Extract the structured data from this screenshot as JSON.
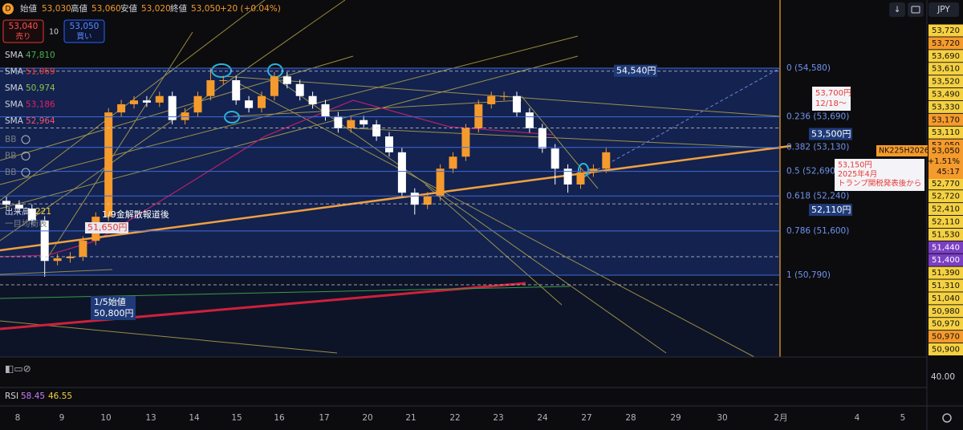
{
  "header": {
    "symbol_icon": "D",
    "open_label": "始値",
    "open": "53,030",
    "high_label": "高値",
    "high": "53,060",
    "low_label": "安値",
    "low": "53,020",
    "close_label": "終値",
    "close": "53,050",
    "change": "+20 (+0.04%)"
  },
  "trade": {
    "sell_price": "53,040",
    "sell": "売り",
    "qty": "10",
    "buy_price": "53,050",
    "buy": "買い"
  },
  "indicators": [
    {
      "name": "SMA",
      "value": "47,810",
      "color": "#4caf50"
    },
    {
      "name": "SMA",
      "value": "51,069",
      "color": "#f44336"
    },
    {
      "name": "SMA",
      "value": "50,974",
      "color": "#8bc34a"
    },
    {
      "name": "SMA",
      "value": "53,186",
      "color": "#e91e63"
    },
    {
      "name": "SMA",
      "value": "52,964",
      "color": "#ef5370"
    }
  ],
  "bb": [
    "BB",
    "BB",
    "BB"
  ],
  "volume": {
    "name": "出来高",
    "value": "221"
  },
  "ichimoku": "一目均衡表",
  "currency": "JPY",
  "chart_data": {
    "type": "candlestick",
    "categories": [
      "8",
      "9",
      "10",
      "13",
      "14",
      "15",
      "16",
      "17",
      "20",
      "21",
      "22",
      "23",
      "24",
      "27",
      "28",
      "29",
      "30",
      "2月",
      "4",
      "5"
    ],
    "open": [
      52150,
      52080,
      52010,
      51790,
      51050,
      51100,
      51130,
      51420,
      51860,
      53770,
      53920,
      53990,
      53950,
      54070,
      53630,
      53770,
      54070,
      54360,
      54360,
      53990,
      53850,
      54070,
      54430,
      54290,
      54070,
      53920,
      53700,
      53480,
      53630,
      53550,
      53330,
      53040,
      52300,
      52080,
      52230,
      52740,
      52960,
      53480,
      53920,
      54070,
      54070,
      53770,
      53480,
      53110,
      52740,
      52450,
      52670,
      52740
    ],
    "high": [
      52230,
      52160,
      52090,
      51870,
      51180,
      51210,
      51500,
      51940,
      53850,
      54000,
      54070,
      54070,
      54150,
      54150,
      53850,
      54150,
      54580,
      54440,
      54440,
      54070,
      54150,
      54510,
      54510,
      54370,
      54150,
      54000,
      53780,
      53710,
      53710,
      53630,
      53410,
      53120,
      52380,
      52310,
      52820,
      53040,
      53560,
      54000,
      54150,
      54150,
      54150,
      53850,
      53560,
      53190,
      52820,
      52750,
      52820,
      53120
    ],
    "low": [
      52000,
      51930,
      51710,
      50760,
      50970,
      51020,
      51050,
      51340,
      51780,
      53690,
      53840,
      53870,
      53870,
      53550,
      53550,
      53690,
      53990,
      54280,
      53910,
      53770,
      53770,
      53990,
      54210,
      53990,
      53840,
      53620,
      53400,
      53400,
      53470,
      53250,
      52960,
      52220,
      51900,
      52000,
      52150,
      52660,
      52880,
      53400,
      53840,
      53990,
      53690,
      53400,
      53030,
      52450,
      52300,
      52370,
      52590,
      52660
    ],
    "close": [
      52080,
      52010,
      51790,
      51050,
      51100,
      51130,
      51420,
      51860,
      53770,
      53920,
      53990,
      53950,
      54070,
      53630,
      53770,
      54070,
      54360,
      54360,
      53990,
      53850,
      54070,
      54430,
      54290,
      54070,
      53920,
      53700,
      53480,
      53630,
      53550,
      53330,
      53040,
      52300,
      52080,
      52230,
      52740,
      52960,
      53480,
      53920,
      54070,
      54070,
      53770,
      53480,
      53110,
      52740,
      52450,
      52670,
      52740,
      53040
    ],
    "up_color": "#f59a2c",
    "down_color": "#ffffff",
    "ylim": [
      49291,
      55829
    ],
    "fib_levels": [
      {
        "label": "0 (54,580)",
        "value": 54580
      },
      {
        "label": "0.236 (53,690)",
        "value": 53690
      },
      {
        "label": "0.382 (53,130)",
        "value": 53130
      },
      {
        "label": "0.5 (52,690)",
        "value": 52690
      },
      {
        "label": "0.618 (52,240)",
        "value": 52240
      },
      {
        "label": "0.786 (51,600)",
        "value": 51600
      },
      {
        "label": "1 (50,790)",
        "value": 50790
      }
    ],
    "price_lines": [
      {
        "label": "54,540円",
        "value": 54540
      },
      {
        "label": "53,500円",
        "value": 53500
      },
      {
        "label": "52,110円",
        "value": 52110
      }
    ],
    "annotations": {
      "news": "1/9金解散報道後",
      "news_price": "51,650円",
      "open_note": "1/5始値",
      "open_price": "50,800円",
      "note1": [
        "53,700円",
        "12/18〜"
      ],
      "note2": [
        "53,150円",
        "2025年4月",
        "トランプ関税発表後から"
      ]
    }
  },
  "price_scale_labels": [
    {
      "text": "53,720",
      "color": "#f5d142"
    },
    {
      "text": "53,720",
      "color": "#f59a2c"
    },
    {
      "text": "53,690",
      "color": "#f5d142"
    },
    {
      "text": "53,610",
      "color": "#f5d142"
    },
    {
      "text": "53,520",
      "color": "#f5d142"
    },
    {
      "text": "53,490",
      "color": "#f5d142"
    },
    {
      "text": "53,330",
      "color": "#f5d142"
    },
    {
      "text": "53,170",
      "color": "#f59a2c"
    },
    {
      "text": "53,110",
      "color": "#f5d142"
    },
    {
      "text": "53,050",
      "color": "#f59a2c"
    },
    {
      "text": "53,010",
      "color": "#f5d142"
    },
    {
      "text": "52,830",
      "color": "#f5d142"
    },
    {
      "text": "52,770",
      "color": "#f5d142"
    },
    {
      "text": "52,720",
      "color": "#f5d142"
    },
    {
      "text": "52,410",
      "color": "#f5d142"
    },
    {
      "text": "52,110",
      "color": "#f5d142"
    },
    {
      "text": "51,530",
      "color": "#f5d142"
    },
    {
      "text": "51,440",
      "color": "#7b3fc4"
    },
    {
      "text": "51,400",
      "color": "#7b3fc4"
    },
    {
      "text": "51,390",
      "color": "#f5d142"
    },
    {
      "text": "51,310",
      "color": "#f5d142"
    },
    {
      "text": "51,040",
      "color": "#f5d142"
    },
    {
      "text": "50,980",
      "color": "#f5d142"
    },
    {
      "text": "50,970",
      "color": "#f5d142"
    },
    {
      "text": "50,970",
      "color": "#f59a2c"
    },
    {
      "text": "50,900",
      "color": "#f5d142"
    }
  ],
  "last_price_tag": {
    "symbol": "NK225H2026",
    "price": "53,050",
    "change": "+1.51%",
    "countdown": "45:17"
  },
  "rsi": {
    "name": "RSI",
    "value1": "58.45",
    "value2": "46.55",
    "level": "40.00"
  }
}
